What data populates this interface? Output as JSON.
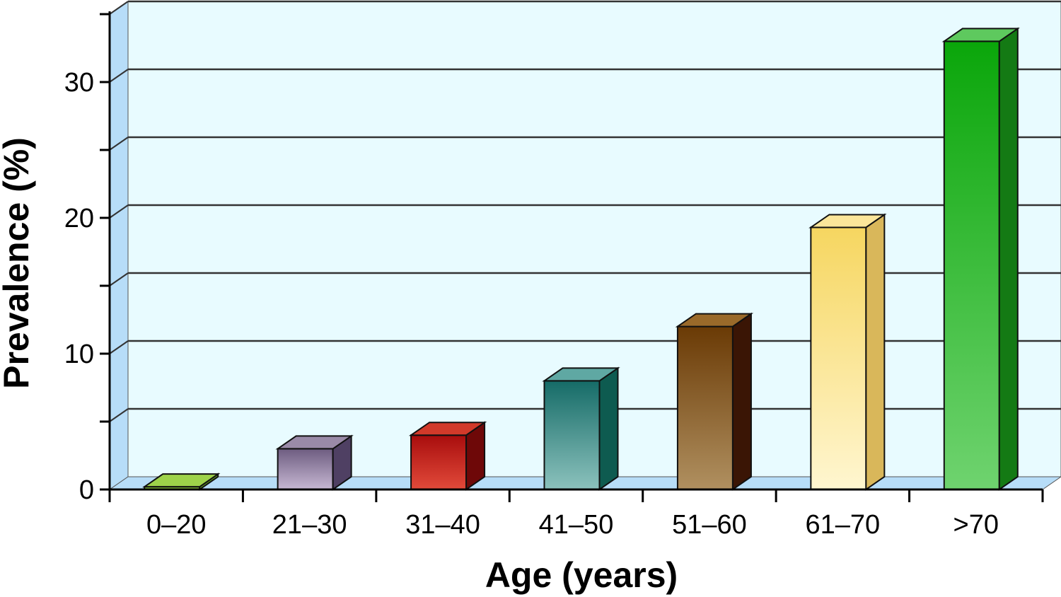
{
  "chart_data": {
    "type": "bar",
    "title": "",
    "xlabel": "Age (years)",
    "ylabel": "Prevalence (%)",
    "categories": [
      "0–20",
      "21–30",
      "31–40",
      "41–50",
      "51–60",
      "61–70",
      ">70"
    ],
    "values": [
      0.2,
      3,
      4,
      8,
      12,
      19.3,
      33
    ],
    "ylim": [
      0,
      35
    ],
    "ytick_values": [
      0,
      10,
      20,
      30
    ],
    "ytick_labels": [
      "0",
      "10",
      "20",
      "30"
    ],
    "grid": true,
    "legend": "none",
    "colors": {
      "wall": "#e8fbff",
      "side_wall": "#b7ddf8",
      "grid": "#333333",
      "bars": [
        {
          "top": "#9ed34a",
          "front_dark": "#76b82a",
          "front_light": "#9ed34a",
          "side": "#5f9a1f"
        },
        {
          "top": "#9a8aa8",
          "front_dark": "#6d5c80",
          "front_light": "#c7b8d3",
          "side": "#4f4063"
        },
        {
          "top": "#d23a2a",
          "front_dark": "#a80d0d",
          "front_light": "#e24a3a",
          "side": "#6e0808"
        },
        {
          "top": "#5fa8a3",
          "front_dark": "#156b67",
          "front_light": "#8cc2bd",
          "side": "#0e5b50"
        },
        {
          "top": "#9a6a2a",
          "front_dark": "#6a3a05",
          "front_light": "#b09060",
          "side": "#3a1505"
        },
        {
          "top": "#fbe69a",
          "front_dark": "#f6d660",
          "front_light": "#fff6d0",
          "side": "#d9b75a"
        },
        {
          "top": "#5ec95e",
          "front_dark": "#0aa60a",
          "front_light": "#6fd36f",
          "side": "#147a14"
        }
      ]
    }
  }
}
